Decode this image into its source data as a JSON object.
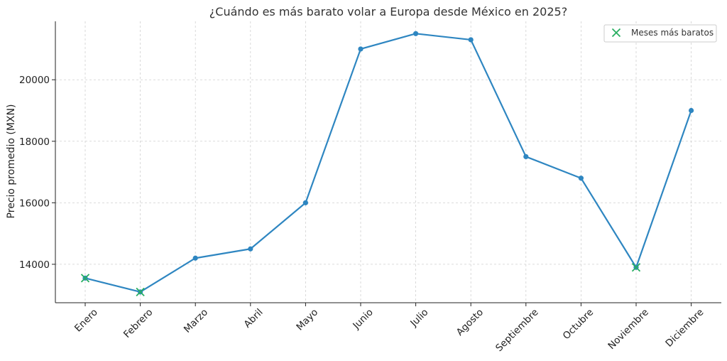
{
  "chart_data": {
    "type": "line",
    "title": "¿Cuándo es más barato volar a Europa desde México en 2025?",
    "xlabel": "",
    "ylabel": "Precio promedio (MXN)",
    "categories": [
      "Enero",
      "Febrero",
      "Marzo",
      "Abril",
      "Mayo",
      "Junio",
      "Julio",
      "Agosto",
      "Septiembre",
      "Octubre",
      "Noviembre",
      "Diciembre"
    ],
    "series": [
      {
        "values": [
          13550,
          13100,
          14200,
          14500,
          16000,
          21000,
          21500,
          21300,
          17500,
          16800,
          13900,
          19000
        ],
        "color": "#2e86c1"
      }
    ],
    "highlight": {
      "name": "Meses más baratos",
      "categories": [
        "Enero",
        "Febrero",
        "Noviembre"
      ],
      "values": [
        13550,
        13100,
        13900
      ],
      "color": "#27ae60",
      "marker": "x"
    },
    "yticks": [
      14000,
      16000,
      18000,
      20000
    ],
    "ylim": [
      12750,
      21900
    ],
    "grid": true,
    "legend_position": "top-right"
  }
}
